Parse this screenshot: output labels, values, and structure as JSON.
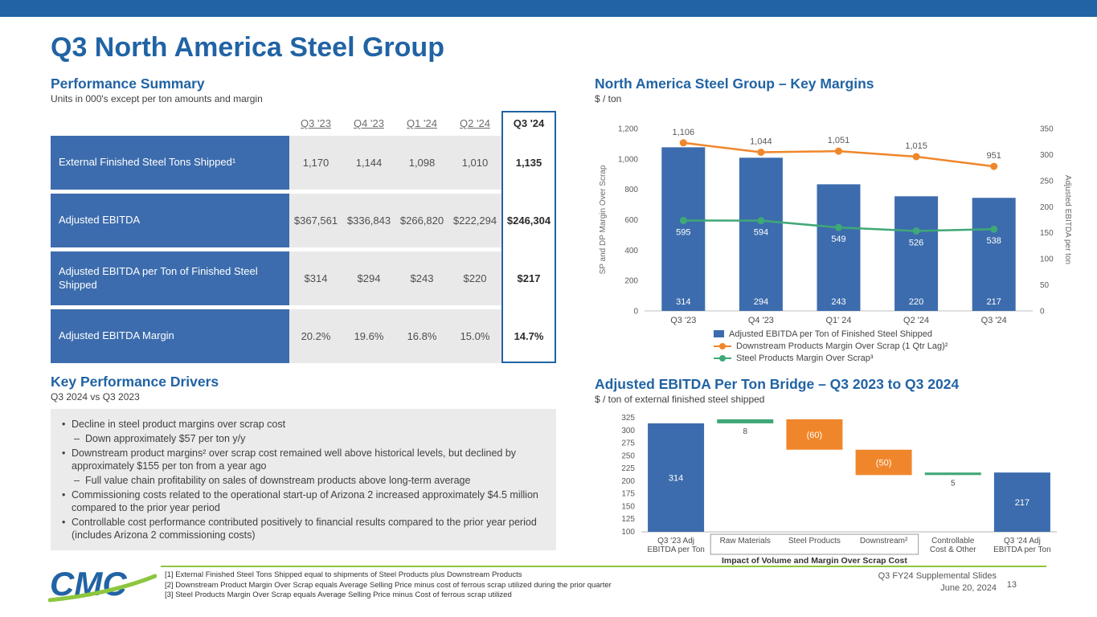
{
  "slide": {
    "title": "Q3 North America Steel Group",
    "logo_text": "CMC",
    "footer_right_line1": "Q3 FY24 Supplemental Slides",
    "footer_right_line2": "June 20, 2024",
    "page_number": "13"
  },
  "colors": {
    "brand_blue": "#2163A4",
    "bar_blue": "#3C6CAD",
    "orange": "#F0862B",
    "green": "#3FA877",
    "lime_green": "#8DC63F",
    "light_gray": "#E9E9E9"
  },
  "performance_summary": {
    "heading": "Performance Summary",
    "subtitle": "Units in 000's except per ton amounts and margin",
    "columns": [
      "Q3 '23",
      "Q4 '23",
      "Q1 '24",
      "Q2 '24",
      "Q3 '24"
    ],
    "rows": [
      {
        "label": "External Finished Steel Tons Shipped¹",
        "values": [
          "1,170",
          "1,144",
          "1,098",
          "1,010",
          "1,135"
        ]
      },
      {
        "label": "Adjusted EBITDA",
        "values": [
          "$367,561",
          "$336,843",
          "$266,820",
          "$222,294",
          "$246,304"
        ]
      },
      {
        "label": "Adjusted EBITDA per Ton of Finished Steel Shipped",
        "values": [
          "$314",
          "$294",
          "$243",
          "$220",
          "$217"
        ]
      },
      {
        "label": "Adjusted EBITDA Margin",
        "values": [
          "20.2%",
          "19.6%",
          "16.8%",
          "15.0%",
          "14.7%"
        ]
      }
    ]
  },
  "key_performance_drivers": {
    "heading": "Key Performance Drivers",
    "subtitle": "Q3 2024 vs Q3 2023",
    "bullets": [
      {
        "text": "Decline in steel product margins over scrap cost",
        "sub": [
          "Down approximately $57 per ton y/y"
        ]
      },
      {
        "text": "Downstream product margins² over scrap cost remained well above historical levels, but declined by approximately $155 per ton from a year ago",
        "sub": [
          "Full value chain profitability on sales of downstream products above long-term average"
        ]
      },
      {
        "text": "Commissioning costs related to the operational start-up of Arizona 2 increased approximately $4.5 million compared to the prior year period",
        "sub": []
      },
      {
        "text": "Controllable cost performance contributed positively to financial results compared to the prior year period (includes Arizona 2 commissioning costs)",
        "sub": []
      }
    ]
  },
  "chart_data": [
    {
      "id": "key_margins",
      "type": "combo_bar_line",
      "title": "North America Steel Group – Key Margins",
      "subtitle": "$ / ton",
      "categories": [
        "Q3 '23",
        "Q4 '23",
        "Q1' 24",
        "Q2 '24",
        "Q3 '24"
      ],
      "left_axis": {
        "label": "SP and DP Margin Over Scrap",
        "min": 0,
        "max": 1200,
        "step": 200,
        "ticks": [
          "0",
          "200",
          "400",
          "600",
          "800",
          "1,000",
          "1,200"
        ]
      },
      "right_axis": {
        "label": "Adjusted EBITDA per ton",
        "min": 0,
        "max": 350,
        "step": 50,
        "ticks": [
          "0",
          "50",
          "100",
          "150",
          "200",
          "250",
          "300",
          "350"
        ]
      },
      "series": [
        {
          "name": "Adjusted EBITDA per Ton of Finished Steel Shipped",
          "type": "bar",
          "axis": "right",
          "color": "#3C6CAD",
          "values": [
            314,
            294,
            243,
            220,
            217
          ],
          "labels": [
            "314",
            "294",
            "243",
            "220",
            "217"
          ]
        },
        {
          "name": "Downstream Products Margin Over Scrap (1 Qtr Lag)²",
          "type": "line",
          "axis": "left",
          "color": "#F0862B",
          "values": [
            1106,
            1044,
            1051,
            1015,
            951
          ],
          "labels": [
            "1,106",
            "1,044",
            "1,051",
            "1,015",
            "951"
          ],
          "label_position": "above",
          "label_color": "#595959"
        },
        {
          "name": "Steel Products Margin Over Scrap³",
          "type": "line",
          "axis": "left",
          "color": "#3FA877",
          "values": [
            595,
            594,
            549,
            526,
            538
          ],
          "labels": [
            "595",
            "594",
            "549",
            "526",
            "538"
          ],
          "label_position": "below",
          "label_color": "#ffffff"
        }
      ],
      "legend_position": "bottom",
      "grid": false
    },
    {
      "id": "ebitda_bridge",
      "type": "waterfall",
      "title": "Adjusted EBITDA Per Ton Bridge – Q3 2023 to Q3 2024",
      "subtitle": "$ / ton of external finished steel shipped",
      "y_axis": {
        "min": 100,
        "max": 325,
        "step": 25,
        "ticks": [
          "100",
          "125",
          "150",
          "175",
          "200",
          "225",
          "250",
          "275",
          "300",
          "325"
        ]
      },
      "x_axis_note": "Impact of Volume and Margin Over Scrap Cost",
      "colors": {
        "total": "#3C6CAD",
        "increase": "#3FA877",
        "decrease": "#F0862B"
      },
      "steps": [
        {
          "label": "Q3 '23 Adj\nEBITDA per Ton",
          "type": "total",
          "value": 314,
          "display": "314"
        },
        {
          "label": "Raw Materials",
          "type": "increase",
          "value": 8,
          "display": "8"
        },
        {
          "label": "Steel Products",
          "type": "decrease",
          "value": -60,
          "display": "(60)"
        },
        {
          "label": "Downstream²",
          "type": "decrease",
          "value": -50,
          "display": "(50)"
        },
        {
          "label": "Controllable\nCost & Other",
          "type": "increase",
          "value": 5,
          "display": "5"
        },
        {
          "label": "Q3 '24 Adj\nEBITDA per Ton",
          "type": "total",
          "value": 217,
          "display": "217"
        }
      ]
    }
  ],
  "footnotes": [
    "[1] External Finished Steel Tons Shipped equal to shipments of Steel Products plus Downstream Products",
    "[2] Downstream Product Margin Over Scrap equals Average Selling Price minus cost of ferrous scrap utilized during the prior quarter",
    "[3] Steel Products Margin Over Scrap equals Average Selling Price minus Cost of ferrous scrap utilized"
  ]
}
